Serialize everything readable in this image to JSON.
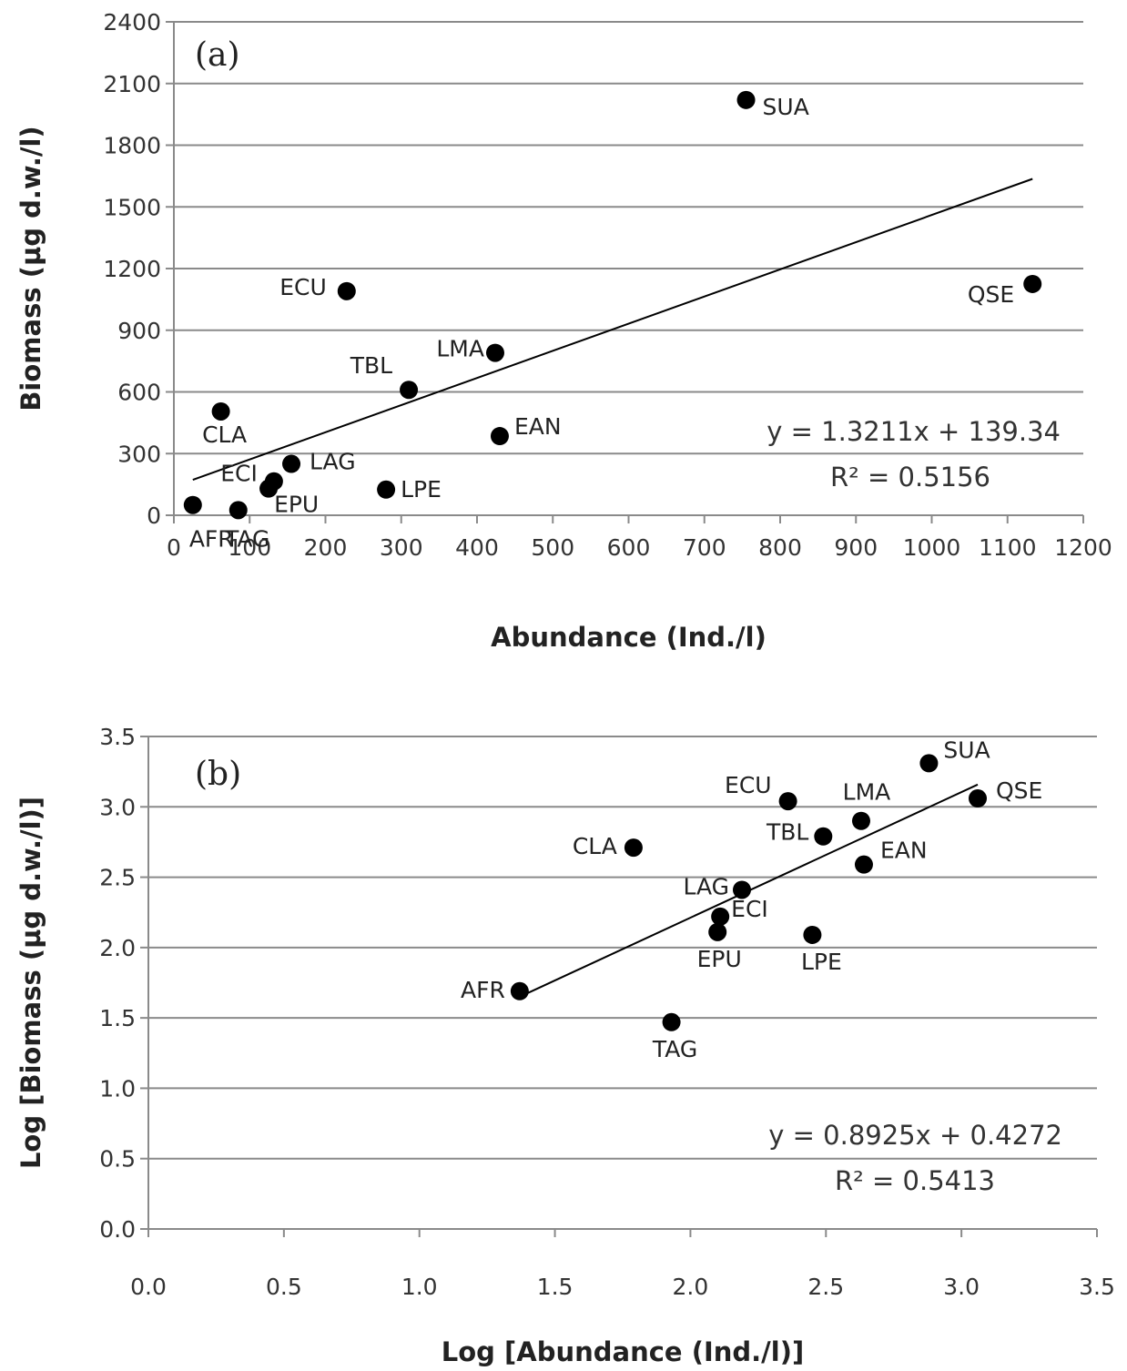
{
  "chart_data": [
    {
      "type": "scatter",
      "panel_label": "(a)",
      "xlabel": "Abundance (Ind./l)",
      "ylabel": "Biomass (µg d.w./l)",
      "xlim": [
        0,
        1200
      ],
      "ylim": [
        0,
        2400
      ],
      "x_ticks": [
        "0",
        "100",
        "200",
        "300",
        "400",
        "500",
        "600",
        "700",
        "800",
        "900",
        "1000",
        "1100",
        "1200"
      ],
      "y_ticks": [
        "0",
        "300",
        "600",
        "900",
        "1200",
        "1500",
        "1800",
        "2100",
        "2400"
      ],
      "grid": "horizontal",
      "points": [
        {
          "label": "SUA",
          "x": 755,
          "y": 2020
        },
        {
          "label": "QSE",
          "x": 1133,
          "y": 1125
        },
        {
          "label": "ECU",
          "x": 228,
          "y": 1090
        },
        {
          "label": "LMA",
          "x": 424,
          "y": 790
        },
        {
          "label": "TBL",
          "x": 310,
          "y": 610
        },
        {
          "label": "CLA",
          "x": 62,
          "y": 505
        },
        {
          "label": "EAN",
          "x": 430,
          "y": 385
        },
        {
          "label": "LAG",
          "x": 155,
          "y": 250
        },
        {
          "label": "ECI",
          "x": 132,
          "y": 165
        },
        {
          "label": "EPU",
          "x": 125,
          "y": 130
        },
        {
          "label": "LPE",
          "x": 280,
          "y": 125
        },
        {
          "label": "AFR",
          "x": 25,
          "y": 50
        },
        {
          "label": "TAG",
          "x": 85,
          "y": 25
        }
      ],
      "trendline": {
        "slope": 1.3211,
        "intercept": 139.34,
        "x_range": [
          25,
          1133
        ]
      },
      "equation": "y = 1.3211x + 139.34",
      "r2": "R² = 0.5156"
    },
    {
      "type": "scatter",
      "panel_label": "(b)",
      "xlabel": "Log [Abundance (Ind./l)]",
      "ylabel": "Log [Biomass (µg d.w./l)]",
      "xlim": [
        0,
        3.5
      ],
      "ylim": [
        0,
        3.5
      ],
      "x_ticks": [
        "0.0",
        "0.5",
        "1.0",
        "1.5",
        "2.0",
        "2.5",
        "3.0",
        "3.5"
      ],
      "y_ticks": [
        "0.0",
        "0.5",
        "1.0",
        "1.5",
        "2.0",
        "2.5",
        "3.0",
        "3.5"
      ],
      "grid": "horizontal",
      "points": [
        {
          "label": "SUA",
          "x": 2.88,
          "y": 3.31
        },
        {
          "label": "QSE",
          "x": 3.06,
          "y": 3.06
        },
        {
          "label": "ECU",
          "x": 2.36,
          "y": 3.04
        },
        {
          "label": "LMA",
          "x": 2.63,
          "y": 2.9
        },
        {
          "label": "TBL",
          "x": 2.49,
          "y": 2.79
        },
        {
          "label": "CLA",
          "x": 1.79,
          "y": 2.71
        },
        {
          "label": "EAN",
          "x": 2.64,
          "y": 2.59
        },
        {
          "label": "LAG",
          "x": 2.19,
          "y": 2.41
        },
        {
          "label": "ECI",
          "x": 2.11,
          "y": 2.22
        },
        {
          "label": "EPU",
          "x": 2.1,
          "y": 2.11
        },
        {
          "label": "LPE",
          "x": 2.45,
          "y": 2.09
        },
        {
          "label": "AFR",
          "x": 1.37,
          "y": 1.69
        },
        {
          "label": "TAG",
          "x": 1.93,
          "y": 1.47
        }
      ],
      "trendline": {
        "slope": 0.8925,
        "intercept": 0.4272,
        "x_range": [
          1.37,
          3.06
        ]
      },
      "equation": "y = 0.8925x + 0.4272",
      "r2": "R² = 0.5413"
    }
  ]
}
